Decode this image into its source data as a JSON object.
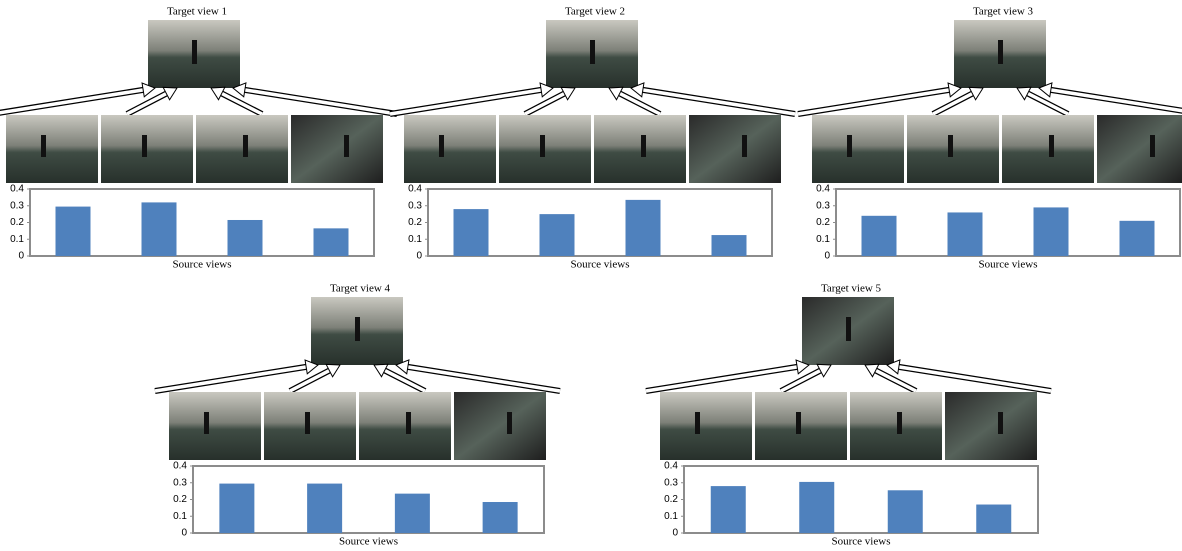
{
  "chart_data": [
    {
      "type": "bar",
      "title": "Target view 1",
      "x_label": "Source views",
      "categories": [
        null,
        null,
        null,
        null
      ],
      "values": [
        0.295,
        0.32,
        0.215,
        0.165
      ],
      "color": "#4f81bd",
      "ylim": [
        0,
        0.4
      ],
      "yticks": [
        0,
        0.1,
        0.2,
        0.3,
        0.4
      ],
      "grid": false
    },
    {
      "type": "bar",
      "title": "Target view 2",
      "x_label": "Source views",
      "categories": [
        null,
        null,
        null,
        null
      ],
      "values": [
        0.28,
        0.25,
        0.335,
        0.125
      ],
      "color": "#4f81bd",
      "ylim": [
        0,
        0.4
      ],
      "yticks": [
        0,
        0.1,
        0.2,
        0.3,
        0.4
      ],
      "grid": false
    },
    {
      "type": "bar",
      "title": "Target view 3",
      "x_label": "Source views",
      "categories": [
        null,
        null,
        null,
        null
      ],
      "values": [
        0.24,
        0.26,
        0.29,
        0.21
      ],
      "color": "#4f81bd",
      "ylim": [
        0,
        0.4
      ],
      "yticks": [
        0,
        0.1,
        0.2,
        0.3,
        0.4
      ],
      "grid": false
    },
    {
      "type": "bar",
      "title": "Target view 4",
      "x_label": "Source views",
      "categories": [
        null,
        null,
        null,
        null
      ],
      "values": [
        0.295,
        0.295,
        0.235,
        0.185
      ],
      "color": "#4f81bd",
      "ylim": [
        0,
        0.4
      ],
      "yticks": [
        0,
        0.1,
        0.2,
        0.3,
        0.4
      ],
      "grid": false
    },
    {
      "type": "bar",
      "title": "Target view 5",
      "x_label": "Source views",
      "categories": [
        null,
        null,
        null,
        null
      ],
      "values": [
        0.28,
        0.305,
        0.255,
        0.17
      ],
      "color": "#4f81bd",
      "ylim": [
        0,
        0.4
      ],
      "yticks": [
        0,
        0.1,
        0.2,
        0.3,
        0.4
      ],
      "grid": false
    }
  ]
}
